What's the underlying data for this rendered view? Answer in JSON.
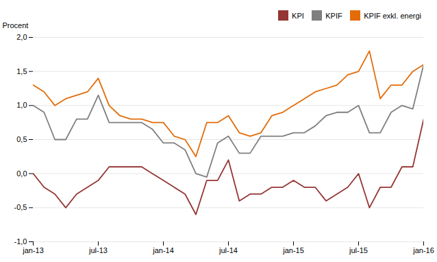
{
  "chart_data": {
    "type": "line",
    "ylabel": "Procent",
    "categories": [
      "jan-13",
      null,
      null,
      null,
      null,
      null,
      "jul-13",
      null,
      null,
      null,
      null,
      null,
      "jan-14",
      null,
      null,
      null,
      null,
      null,
      "jul-14",
      null,
      null,
      null,
      null,
      null,
      "jan-15",
      null,
      null,
      null,
      null,
      null,
      "jul-15",
      null,
      null,
      null,
      null,
      null,
      "jan-16"
    ],
    "series": [
      {
        "name": "KPI",
        "color": "#943634",
        "values": [
          0.0,
          -0.2,
          -0.3,
          -0.5,
          -0.3,
          -0.2,
          -0.1,
          0.1,
          0.1,
          0.1,
          0.1,
          0.0,
          -0.1,
          -0.2,
          -0.3,
          -0.6,
          -0.1,
          -0.1,
          0.2,
          -0.4,
          -0.3,
          -0.3,
          -0.2,
          -0.2,
          -0.1,
          -0.2,
          -0.2,
          -0.4,
          -0.3,
          -0.2,
          0.0,
          -0.5,
          -0.2,
          -0.2,
          0.1,
          0.1,
          0.8
        ]
      },
      {
        "name": "KPIF",
        "color": "#7f7f7f",
        "values": [
          1.0,
          0.9,
          0.5,
          0.5,
          0.8,
          0.8,
          1.15,
          0.75,
          0.75,
          0.75,
          0.75,
          0.65,
          0.45,
          0.45,
          0.35,
          0.0,
          -0.05,
          0.45,
          0.55,
          0.3,
          0.3,
          0.55,
          0.55,
          0.55,
          0.6,
          0.6,
          0.7,
          0.85,
          0.9,
          0.9,
          1.0,
          0.6,
          0.6,
          0.9,
          1.0,
          0.95,
          1.6
        ]
      },
      {
        "name": "KPIF exkl. energi",
        "color": "#e36c09",
        "values": [
          1.3,
          1.2,
          1.0,
          1.1,
          1.15,
          1.2,
          1.4,
          1.0,
          0.85,
          0.8,
          0.8,
          0.75,
          0.75,
          0.55,
          0.5,
          0.25,
          0.75,
          0.75,
          0.85,
          0.6,
          0.55,
          0.6,
          0.85,
          0.9,
          1.0,
          1.1,
          1.2,
          1.25,
          1.3,
          1.45,
          1.5,
          1.8,
          1.1,
          1.3,
          1.3,
          1.5,
          1.6
        ]
      }
    ],
    "ylim": [
      -1.0,
      2.0
    ],
    "yticks": [
      {
        "value": -1.0,
        "label": "-1,0"
      },
      {
        "value": -0.5,
        "label": "-0,5"
      },
      {
        "value": 0.0,
        "label": "0,0"
      },
      {
        "value": 0.5,
        "label": "0,5"
      },
      {
        "value": 1.0,
        "label": "1,0"
      },
      {
        "value": 1.5,
        "label": "1,5"
      },
      {
        "value": 2.0,
        "label": "2,0"
      }
    ],
    "grid": true,
    "legend": "upper right"
  }
}
